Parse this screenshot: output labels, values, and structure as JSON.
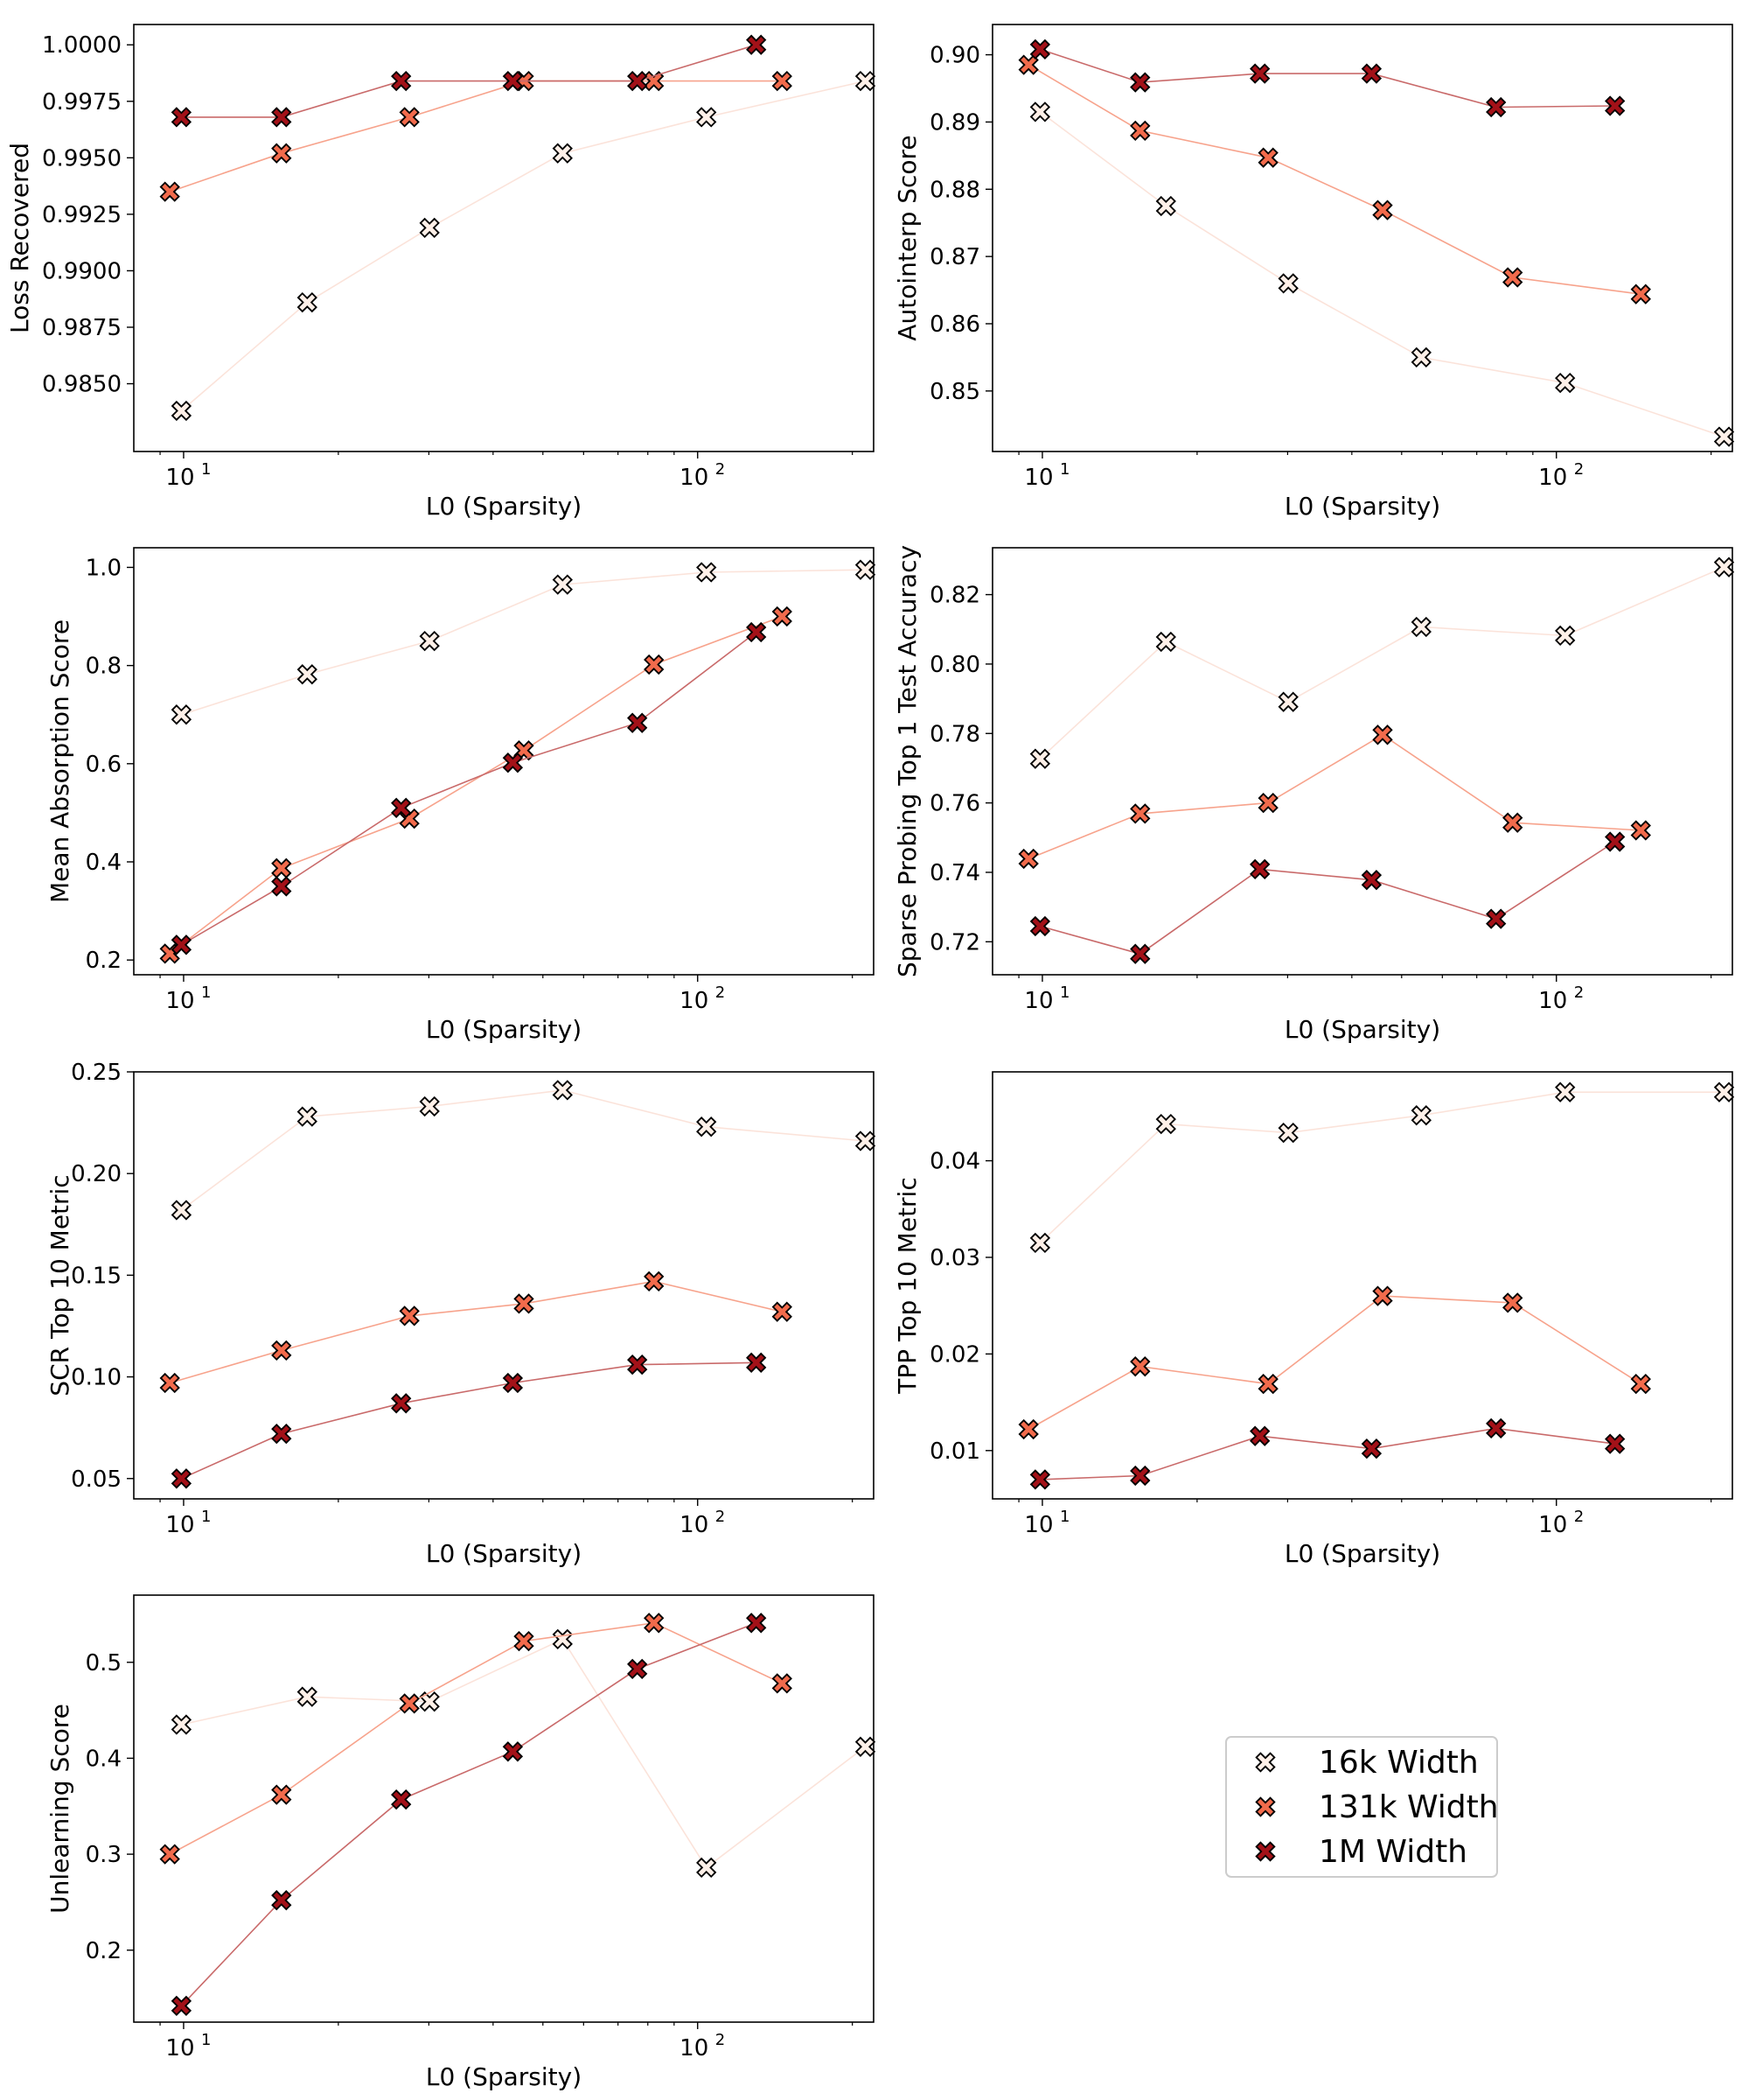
{
  "colors": {
    "16k": "#fff0e8",
    "131k": "#f26b4c",
    "1M": "#a31118",
    "line_16k": "#fbe3da",
    "line_131k": "#f7a38c",
    "line_1M": "#c96a6a",
    "marker_edge": "#000000"
  },
  "legend": {
    "placement": "lower-right empty cell",
    "entries": [
      {
        "label": "16k Width",
        "series": "16k"
      },
      {
        "label": "131k Width",
        "series": "131k"
      },
      {
        "label": "1M Width",
        "series": "1M"
      }
    ]
  },
  "chart_data": [
    {
      "type": "scatter",
      "xscale": "log",
      "xlim": [
        8,
        220
      ],
      "xlabel": "L0 (Sparsity)",
      "ylabel": "Loss Recovered",
      "ylim": [
        0.982,
        1.0009
      ],
      "xticks": [
        {
          "value": 10,
          "label": "10",
          "exp": "1"
        },
        {
          "value": 100,
          "label": "10",
          "exp": "2"
        }
      ],
      "yticks": [
        {
          "value": 0.985,
          "label": "0.9850"
        },
        {
          "value": 0.9875,
          "label": "0.9875"
        },
        {
          "value": 0.99,
          "label": "0.9900"
        },
        {
          "value": 0.9925,
          "label": "0.9925"
        },
        {
          "value": 0.995,
          "label": "0.9950"
        },
        {
          "value": 0.9975,
          "label": "0.9975"
        },
        {
          "value": 1.0,
          "label": "1.0000"
        }
      ],
      "series": [
        {
          "name": "16k Width",
          "key": "16k",
          "x": [
            9.9,
            17.4,
            30.1,
            54.6,
            104,
            212
          ],
          "y": [
            0.9838,
            0.9886,
            0.9919,
            0.9952,
            0.9968,
            0.9984
          ]
        },
        {
          "name": "131k Width",
          "key": "131k",
          "x": [
            9.4,
            15.5,
            27.5,
            45.9,
            82.2,
            146
          ],
          "y": [
            0.9935,
            0.9952,
            0.9968,
            0.9984,
            0.9984,
            0.9984
          ]
        },
        {
          "name": "1M Width",
          "key": "1M",
          "x": [
            9.9,
            15.5,
            26.5,
            43.7,
            76.3,
            130
          ],
          "y": [
            0.9968,
            0.9968,
            0.9984,
            0.9984,
            0.9984,
            1.0
          ]
        }
      ]
    },
    {
      "type": "scatter",
      "xscale": "log",
      "xlim": [
        8,
        220
      ],
      "xlabel": "L0 (Sparsity)",
      "ylabel": "Autointerp Score",
      "ylim": [
        0.841,
        0.9045
      ],
      "xticks": [
        {
          "value": 10,
          "label": "10",
          "exp": "1"
        },
        {
          "value": 100,
          "label": "10",
          "exp": "2"
        }
      ],
      "yticks": [
        {
          "value": 0.85,
          "label": "0.85"
        },
        {
          "value": 0.86,
          "label": "0.86"
        },
        {
          "value": 0.87,
          "label": "0.87"
        },
        {
          "value": 0.88,
          "label": "0.88"
        },
        {
          "value": 0.89,
          "label": "0.89"
        },
        {
          "value": 0.9,
          "label": "0.90"
        }
      ],
      "series": [
        {
          "name": "16k Width",
          "key": "16k",
          "x": [
            9.9,
            17.4,
            30.1,
            54.6,
            104,
            212
          ],
          "y": [
            0.8915,
            0.8775,
            0.866,
            0.855,
            0.8512,
            0.8432
          ]
        },
        {
          "name": "131k Width",
          "key": "131k",
          "x": [
            9.4,
            15.5,
            27.5,
            45.9,
            82.2,
            146
          ],
          "y": [
            0.8985,
            0.8887,
            0.8847,
            0.8769,
            0.8669,
            0.8644
          ]
        },
        {
          "name": "1M Width",
          "key": "1M",
          "x": [
            9.9,
            15.5,
            26.5,
            43.7,
            76.3,
            130
          ],
          "y": [
            0.9008,
            0.8959,
            0.8972,
            0.8972,
            0.8922,
            0.8924
          ]
        }
      ]
    },
    {
      "type": "scatter",
      "xscale": "log",
      "xlim": [
        8,
        220
      ],
      "xlabel": "L0 (Sparsity)",
      "ylabel": "Mean Absorption Score",
      "ylim": [
        0.17,
        1.04
      ],
      "xticks": [
        {
          "value": 10,
          "label": "10",
          "exp": "1"
        },
        {
          "value": 100,
          "label": "10",
          "exp": "2"
        }
      ],
      "yticks": [
        {
          "value": 0.2,
          "label": "0.2"
        },
        {
          "value": 0.4,
          "label": "0.4"
        },
        {
          "value": 0.6,
          "label": "0.6"
        },
        {
          "value": 0.8,
          "label": "0.8"
        },
        {
          "value": 1.0,
          "label": "1.0"
        }
      ],
      "series": [
        {
          "name": "16k Width",
          "key": "16k",
          "x": [
            9.9,
            17.4,
            30.1,
            54.6,
            104,
            212
          ],
          "y": [
            0.7,
            0.782,
            0.85,
            0.965,
            0.99,
            0.995
          ]
        },
        {
          "name": "131k Width",
          "key": "131k",
          "x": [
            9.4,
            15.5,
            27.5,
            45.9,
            82.2,
            146
          ],
          "y": [
            0.213,
            0.387,
            0.488,
            0.627,
            0.802,
            0.9
          ]
        },
        {
          "name": "1M Width",
          "key": "1M",
          "x": [
            9.9,
            15.5,
            26.5,
            43.7,
            76.3,
            130
          ],
          "y": [
            0.231,
            0.35,
            0.51,
            0.602,
            0.683,
            0.868
          ]
        }
      ]
    },
    {
      "type": "scatter",
      "xscale": "log",
      "xlim": [
        8,
        220
      ],
      "xlabel": "L0 (Sparsity)",
      "ylabel": "Sparse Probing Top 1 Test Accuracy",
      "ylim": [
        0.7105,
        0.8335
      ],
      "xticks": [
        {
          "value": 10,
          "label": "10",
          "exp": "1"
        },
        {
          "value": 100,
          "label": "10",
          "exp": "2"
        }
      ],
      "yticks": [
        {
          "value": 0.72,
          "label": "0.72"
        },
        {
          "value": 0.74,
          "label": "0.74"
        },
        {
          "value": 0.76,
          "label": "0.76"
        },
        {
          "value": 0.78,
          "label": "0.78"
        },
        {
          "value": 0.8,
          "label": "0.80"
        },
        {
          "value": 0.82,
          "label": "0.82"
        }
      ],
      "series": [
        {
          "name": "16k Width",
          "key": "16k",
          "x": [
            9.9,
            17.4,
            30.1,
            54.6,
            104,
            212
          ],
          "y": [
            0.7727,
            0.8064,
            0.7891,
            0.8107,
            0.8082,
            0.8279
          ]
        },
        {
          "name": "131k Width",
          "key": "131k",
          "x": [
            9.4,
            15.5,
            27.5,
            45.9,
            82.2,
            146
          ],
          "y": [
            0.7439,
            0.7569,
            0.76,
            0.7796,
            0.7543,
            0.7521
          ]
        },
        {
          "name": "1M Width",
          "key": "1M",
          "x": [
            9.9,
            15.5,
            26.5,
            43.7,
            76.3,
            130
          ],
          "y": [
            0.7245,
            0.7165,
            0.7409,
            0.7378,
            0.7266,
            0.7488
          ]
        }
      ]
    },
    {
      "type": "scatter",
      "xscale": "log",
      "xlim": [
        8,
        220
      ],
      "xlabel": "L0 (Sparsity)",
      "ylabel": "SCR Top 10 Metric",
      "ylim": [
        0.04,
        0.25
      ],
      "xticks": [
        {
          "value": 10,
          "label": "10",
          "exp": "1"
        },
        {
          "value": 100,
          "label": "10",
          "exp": "2"
        }
      ],
      "yticks": [
        {
          "value": 0.05,
          "label": "0.05"
        },
        {
          "value": 0.1,
          "label": "0.10"
        },
        {
          "value": 0.15,
          "label": "0.15"
        },
        {
          "value": 0.2,
          "label": "0.20"
        },
        {
          "value": 0.25,
          "label": "0.25"
        }
      ],
      "series": [
        {
          "name": "16k Width",
          "key": "16k",
          "x": [
            9.9,
            17.4,
            30.1,
            54.6,
            104,
            212
          ],
          "y": [
            0.182,
            0.228,
            0.233,
            0.241,
            0.223,
            0.216
          ]
        },
        {
          "name": "131k Width",
          "key": "131k",
          "x": [
            9.4,
            15.5,
            27.5,
            45.9,
            82.2,
            146
          ],
          "y": [
            0.097,
            0.113,
            0.13,
            0.136,
            0.147,
            0.132
          ]
        },
        {
          "name": "1M Width",
          "key": "1M",
          "x": [
            9.9,
            15.5,
            26.5,
            43.7,
            76.3,
            130
          ],
          "y": [
            0.05,
            0.072,
            0.087,
            0.097,
            0.106,
            0.107
          ]
        }
      ]
    },
    {
      "type": "scatter",
      "xscale": "log",
      "xlim": [
        8,
        220
      ],
      "xlabel": "L0 (Sparsity)",
      "ylabel": "TPP Top 10 Metric",
      "ylim": [
        0.005,
        0.0492
      ],
      "xticks": [
        {
          "value": 10,
          "label": "10",
          "exp": "1"
        },
        {
          "value": 100,
          "label": "10",
          "exp": "2"
        }
      ],
      "yticks": [
        {
          "value": 0.01,
          "label": "0.01"
        },
        {
          "value": 0.02,
          "label": "0.02"
        },
        {
          "value": 0.03,
          "label": "0.03"
        },
        {
          "value": 0.04,
          "label": "0.04"
        }
      ],
      "series": [
        {
          "name": "16k Width",
          "key": "16k",
          "x": [
            9.9,
            17.4,
            30.1,
            54.6,
            104,
            212
          ],
          "y": [
            0.0315,
            0.0438,
            0.0429,
            0.0447,
            0.0471,
            0.0471
          ]
        },
        {
          "name": "131k Width",
          "key": "131k",
          "x": [
            9.4,
            15.5,
            27.5,
            45.9,
            82.2,
            146
          ],
          "y": [
            0.0122,
            0.0187,
            0.0169,
            0.026,
            0.0253,
            0.0169
          ]
        },
        {
          "name": "1M Width",
          "key": "1M",
          "x": [
            9.9,
            15.5,
            26.5,
            43.7,
            76.3,
            130
          ],
          "y": [
            0.007,
            0.0074,
            0.0115,
            0.0102,
            0.0123,
            0.0107
          ]
        }
      ]
    },
    {
      "type": "scatter",
      "xscale": "log",
      "xlim": [
        8,
        220
      ],
      "xlabel": "L0 (Sparsity)",
      "ylabel": "Unlearning Score",
      "ylim": [
        0.125,
        0.57
      ],
      "xticks": [
        {
          "value": 10,
          "label": "10",
          "exp": "1"
        },
        {
          "value": 100,
          "label": "10",
          "exp": "2"
        }
      ],
      "yticks": [
        {
          "value": 0.2,
          "label": "0.2"
        },
        {
          "value": 0.3,
          "label": "0.3"
        },
        {
          "value": 0.4,
          "label": "0.4"
        },
        {
          "value": 0.5,
          "label": "0.5"
        }
      ],
      "series": [
        {
          "name": "16k Width",
          "key": "16k",
          "x": [
            9.9,
            17.4,
            30.1,
            54.6,
            104,
            212
          ],
          "y": [
            0.435,
            0.464,
            0.459,
            0.524,
            0.286,
            0.412
          ]
        },
        {
          "name": "131k Width",
          "key": "131k",
          "x": [
            9.4,
            15.5,
            27.5,
            45.9,
            82.2,
            146
          ],
          "y": [
            0.3,
            0.362,
            0.457,
            0.522,
            0.541,
            0.478
          ]
        },
        {
          "name": "1M Width",
          "key": "1M",
          "x": [
            9.9,
            15.5,
            26.5,
            43.7,
            76.3,
            130
          ],
          "y": [
            0.142,
            0.252,
            0.357,
            0.407,
            0.493,
            0.541
          ]
        }
      ]
    }
  ]
}
